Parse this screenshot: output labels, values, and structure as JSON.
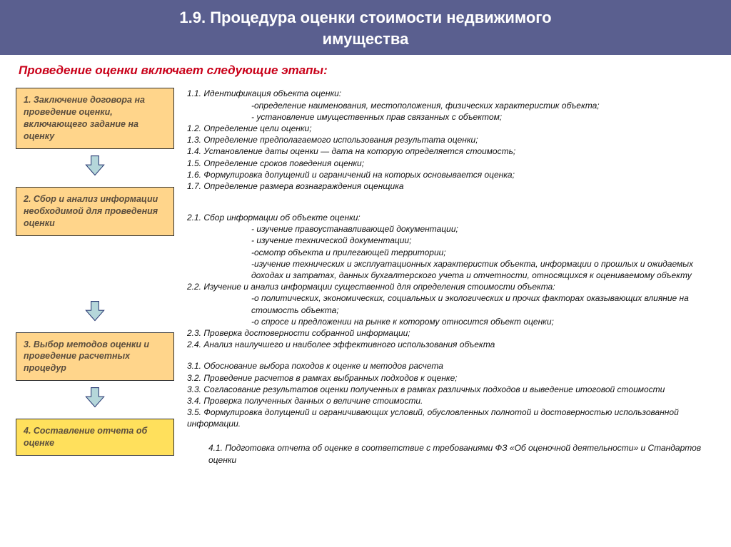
{
  "header": {
    "line1": "1.9. Процедура оценки стоимости недвижимого",
    "line2": "имущества"
  },
  "subtitle": "Проведение оценки включает следующие этапы:",
  "steps": {
    "s1": "1. Заключение договора на проведение оценки, включающего задание на оценку",
    "s2": "2. Сбор и анализ информации необходимой для проведения оценки",
    "s3": "3. Выбор методов оценки и проведение расчетных процедур",
    "s4": "4. Составление отчета об оценке"
  },
  "box_colors": {
    "s1": "#ffd58b",
    "s2": "#ffd58b",
    "s3": "#ffd58b",
    "s4": "#ffe05c"
  },
  "arrow": {
    "fill": "#b5d7da",
    "stroke": "#2c3d75"
  },
  "sections": {
    "sec1": [
      "1.1. Идентификация объекта оценки:",
      "-определение наименования, местоположения, физических характеристик объекта;",
      "- установление имущественных прав связанных с объектом;",
      "1.2. Определение цели оценки;",
      "1.3. Определение предполагаемого использования результата оценки;",
      "1.4. Установление даты оценки — дата на которую определяется стоимость;",
      "1.5. Определение сроков поведения оценки;",
      "1.6. Формулировка допущений и ограничений на которых основывается оценка;",
      "1.7. Определение размера вознаграждения оценщика"
    ],
    "sec1_indent": [
      false,
      true,
      true,
      false,
      false,
      false,
      false,
      false,
      false
    ],
    "sec2": [
      "2.1. Сбор информации об объекте оценки:",
      "- изучение правоустанавливающей документации;",
      "- изучение технической документации;",
      "-осмотр объекта и прилегающей территории;",
      "-изучение технических и эксплуатационных характеристик объекта, информации о прошлых и ожидаемых доходах и затратах, данных бухгалтерского учета и отчетности, относящихся к оцениваемому объекту",
      "2.2. Изучение и анализ информации  существенной для определения стоимости объекта:",
      "-о политических, экономических, социальных и экологических и прочих факторах оказывающих влияние на стоимость объекта;",
      "-о спросе и предложении на рынке к которому относится объект оценки;",
      "2.3. Проверка достоверности собранной информации;",
      "2.4. Анализ наилучшего и наиболее эффективного использования объекта"
    ],
    "sec2_indent": [
      false,
      true,
      true,
      true,
      true,
      false,
      true,
      true,
      false,
      false
    ],
    "sec3": [
      "3.1. Обоснование выбора походов к оценке и методов расчета",
      "3.2. Проведение расчетов в рамках выбранных  подходов к оценке;",
      "3.3. Согласование результатов оценки полученных в рамках различных подходов и выведение итоговой стоимости",
      "3.4. Проверка полученных данных о величине стоимости.",
      "3.5. Формулировка допущений и ограничивающих условий, обусловленных полнотой и достоверностью использованной информации."
    ]
  },
  "footer": "4.1. Подготовка отчета об оценке в соответствие с требованиями ФЗ «Об оценочной деятельности» и Стандартов оценки"
}
